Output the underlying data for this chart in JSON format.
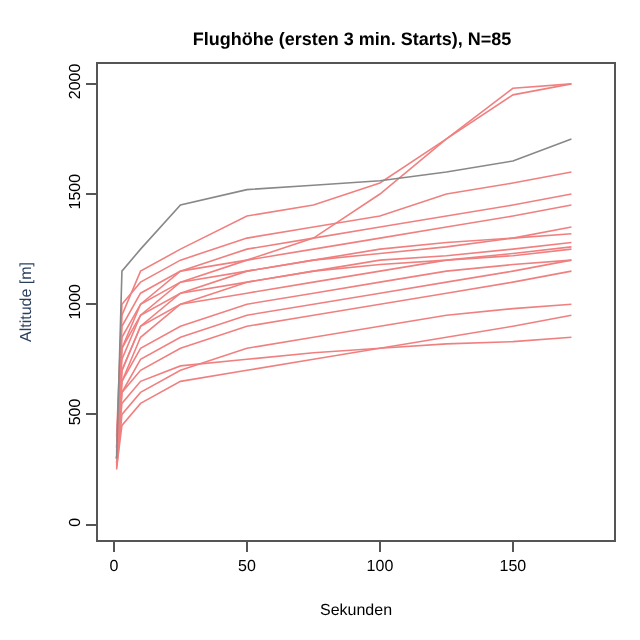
{
  "chart_data": {
    "type": "line",
    "title": "Flughöhe (ersten 3 min. Starts), N=85",
    "xlabel": "Sekunden",
    "ylabel": "Altitude [m]",
    "x": [
      1,
      3,
      10,
      25,
      50,
      75,
      100,
      125,
      150,
      172
    ],
    "xlim": [
      -6,
      188
    ],
    "xticks": [
      0,
      50,
      100,
      150
    ],
    "ylim": [
      -70,
      2090
    ],
    "yticks": [
      0,
      500,
      1000,
      1500,
      2000
    ],
    "marker": "none",
    "line_style": "solid",
    "series": [
      {
        "color": "#f08080",
        "values": [
          300,
          700,
          900,
          1050,
          1150,
          1200,
          1250,
          1280,
          1300,
          1320
        ]
      },
      {
        "color": "#f08080",
        "values": [
          280,
          600,
          750,
          850,
          950,
          1000,
          1050,
          1100,
          1150,
          1200
        ]
      },
      {
        "color": "#f08080",
        "values": [
          350,
          900,
          1050,
          1150,
          1200,
          1250,
          1300,
          1350,
          1400,
          1450
        ]
      },
      {
        "color": "#f08080",
        "values": [
          250,
          500,
          600,
          700,
          800,
          850,
          900,
          950,
          980,
          1000
        ]
      },
      {
        "color": "#f08080",
        "values": [
          300,
          550,
          650,
          720,
          750,
          780,
          800,
          820,
          830,
          850
        ]
      },
      {
        "color": "#f08080",
        "values": [
          400,
          1000,
          1100,
          1200,
          1300,
          1350,
          1400,
          1500,
          1550,
          1600
        ]
      },
      {
        "color": "#f08080",
        "values": [
          300,
          800,
          1000,
          1100,
          1200,
          1300,
          1500,
          1750,
          1950,
          2000
        ]
      },
      {
        "color": "#f08080",
        "values": [
          270,
          650,
          850,
          1000,
          1100,
          1150,
          1200,
          1220,
          1250,
          1280
        ]
      },
      {
        "color": "#f08080",
        "values": [
          320,
          750,
          950,
          1100,
          1150,
          1200,
          1230,
          1260,
          1300,
          1350
        ]
      },
      {
        "color": "#f08080",
        "values": [
          260,
          450,
          550,
          650,
          700,
          750,
          800,
          850,
          900,
          950
        ]
      },
      {
        "color": "#f08080",
        "values": [
          300,
          850,
          1000,
          1150,
          1250,
          1300,
          1350,
          1400,
          1450,
          1500
        ]
      },
      {
        "color": "#f08080",
        "values": [
          280,
          700,
          900,
          1000,
          1050,
          1100,
          1150,
          1200,
          1220,
          1250
        ]
      },
      {
        "color": "#f08080",
        "values": [
          350,
          950,
          1150,
          1250,
          1400,
          1450,
          1550,
          1750,
          1980,
          2000
        ]
      },
      {
        "color": "#f08080",
        "values": [
          300,
          600,
          700,
          800,
          900,
          950,
          1000,
          1050,
          1100,
          1150
        ]
      },
      {
        "color": "#f08080",
        "values": [
          330,
          800,
          950,
          1050,
          1100,
          1150,
          1180,
          1200,
          1230,
          1260
        ]
      },
      {
        "color": "#f08080",
        "values": [
          300,
          650,
          800,
          900,
          1000,
          1050,
          1100,
          1150,
          1180,
          1200
        ]
      },
      {
        "color": "#888888",
        "values": [
          300,
          1150,
          1250,
          1450,
          1520,
          1540,
          1560,
          1600,
          1650,
          1750
        ]
      }
    ]
  }
}
